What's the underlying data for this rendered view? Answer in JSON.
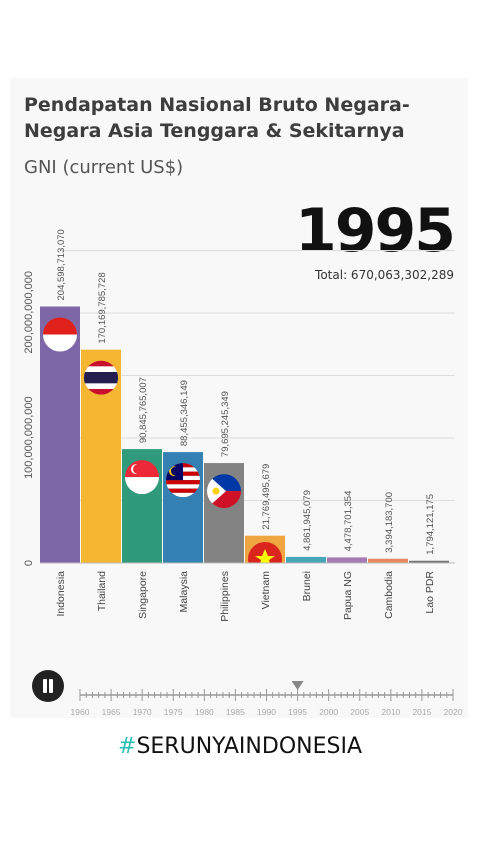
{
  "header": {
    "title": "Pendapatan Nasional Bruto Negara-Negara Asia Tenggara & Sekitarnya",
    "subtitle": "GNI (current US$)",
    "year": "1995",
    "total": "Total: 670,063,302,289"
  },
  "chart_data": {
    "type": "bar",
    "title": "Pendapatan Nasional Bruto Negara-Negara Asia Tenggara & Sekitarnya",
    "subtitle": "GNI (current US$)",
    "categories": [
      "Indonesia",
      "Thailand",
      "Singapore",
      "Malaysia",
      "Philippines",
      "Vietnam",
      "Brunei",
      "Papua NG",
      "Cambodia",
      "Lao PDR"
    ],
    "values": [
      204598713070,
      170169785728,
      90845765007,
      88455346149,
      79695245349,
      21769495679,
      4861945079,
      4478701354,
      3394183700,
      1794121175
    ],
    "value_labels": [
      "204,598,713,070",
      "170,169,785,728",
      "90,845,765,007",
      "88,455,346,149",
      "79,695,245,349",
      "21,769,495,679",
      "4,861,945,079",
      "4,478,701,354",
      "3,394,183,700",
      "1,794,121,175"
    ],
    "colors": [
      "#7e67a7",
      "#f5b731",
      "#2f9a7c",
      "#3580b2",
      "#838383",
      "#f0a640",
      "#44a6b6",
      "#a67bb3",
      "#e48a5c",
      "#757575"
    ],
    "flags": [
      "indonesia-flag",
      "thailand-flag",
      "singapore-flag",
      "malaysia-flag",
      "philippines-flag",
      "vietnam-flag",
      "",
      "",
      "",
      ""
    ],
    "y_ticks": [
      0,
      100000000000,
      200000000000
    ],
    "y_tick_labels": [
      "0",
      "100,000,000,000",
      "200,000,000,000"
    ],
    "ylim": [
      0,
      205000000000
    ],
    "grid": true
  },
  "timeline": {
    "labels": [
      "1960",
      "1965",
      "1970",
      "1975",
      "1980",
      "1985",
      "1990",
      "1995",
      "2000",
      "2005",
      "2010",
      "2015",
      "2020"
    ],
    "current": "1995"
  },
  "footer": {
    "hash": "#",
    "hashtag": "SERUNYAINDONESIA"
  }
}
